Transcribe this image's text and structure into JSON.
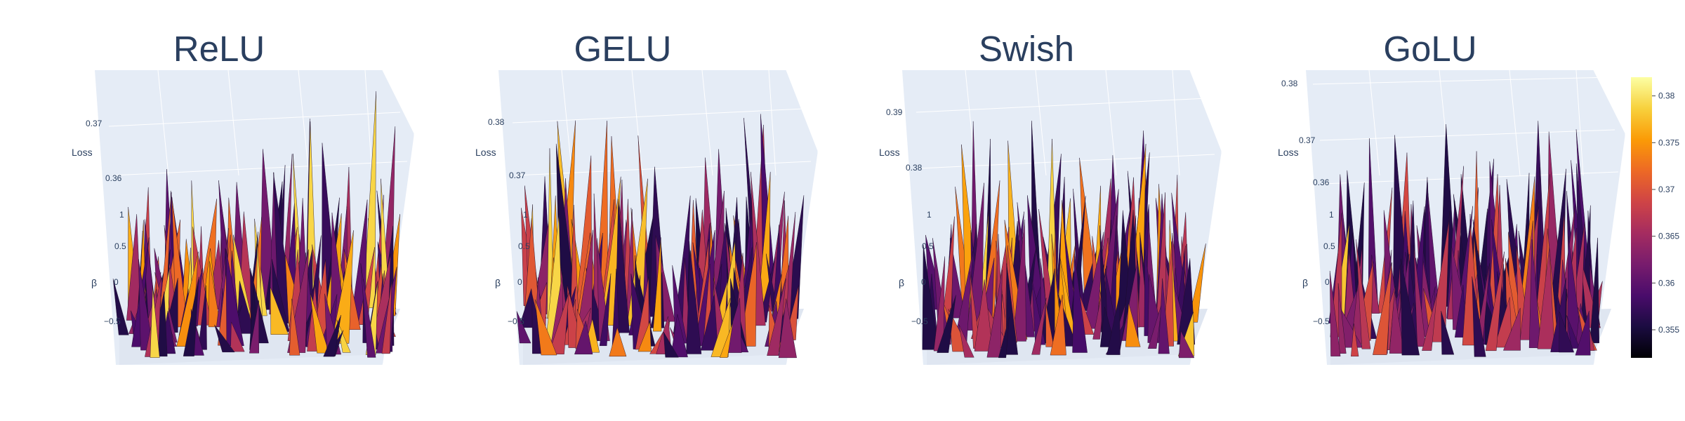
{
  "chart_data": [
    {
      "type": "surface",
      "title": "ReLU",
      "zlabel": "Loss",
      "ylabel": "β",
      "z_ticks": [
        "0.36",
        "0.37"
      ],
      "y_ticks": [
        "−0.5",
        "0",
        "0.5",
        "1"
      ],
      "spike_level": 0.46
    },
    {
      "type": "surface",
      "title": "GELU",
      "zlabel": "Loss",
      "ylabel": "β",
      "z_ticks": [
        "0.37",
        "0.38"
      ],
      "y_ticks": [
        "−0.5",
        "0",
        "0.5",
        "1"
      ],
      "spike_level": 0.42
    },
    {
      "type": "surface",
      "title": "Swish",
      "zlabel": "Loss",
      "ylabel": "β",
      "z_ticks": [
        "0.38",
        "0.39"
      ],
      "y_ticks": [
        "−0.5",
        "0",
        "0.5",
        "1"
      ],
      "spike_level": 0.42
    },
    {
      "type": "surface",
      "title": "GoLU",
      "zlabel": "Loss",
      "ylabel": "β",
      "z_ticks": [
        "0.36",
        "0.37",
        "0.38"
      ],
      "y_ticks": [
        "−0.5",
        "0",
        "0.5",
        "1"
      ],
      "spike_level": 0.22
    }
  ],
  "colorbar": {
    "ticks": [
      0.355,
      0.36,
      0.365,
      0.37,
      0.375,
      0.38
    ],
    "tick_labels": [
      "0.355",
      "0.36",
      "0.365",
      "0.37",
      "0.375",
      "0.38"
    ],
    "range": [
      0.352,
      0.382
    ],
    "colorscale": [
      "#000004",
      "#1b0c41",
      "#4a0c6b",
      "#781c6d",
      "#a52c60",
      "#cf4446",
      "#ed6925",
      "#fb9b06",
      "#f7d13d",
      "#fcffa4"
    ]
  }
}
